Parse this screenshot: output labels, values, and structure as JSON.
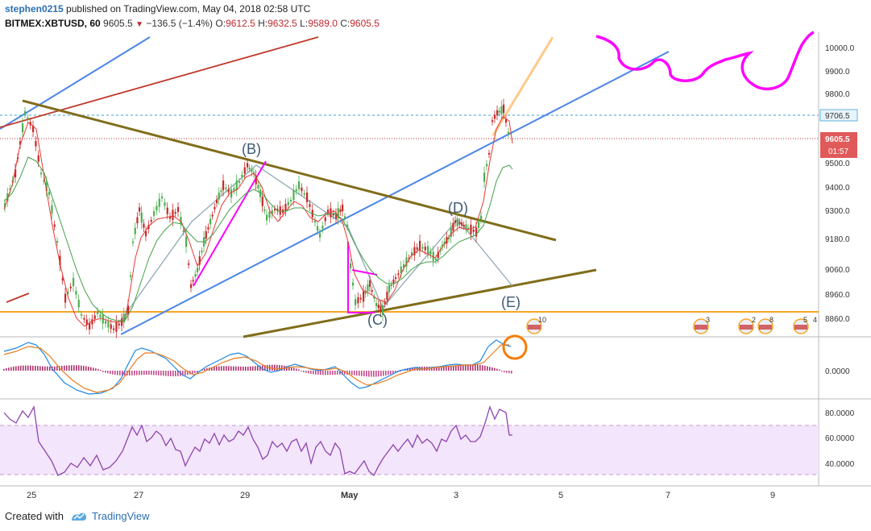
{
  "header": {
    "author": "stephen0215",
    "published_text": "published on TradingView.com, May 04, 2018 02:58 UTC",
    "symbol": "BITMEX:XBTUSD, 60",
    "price": "9605.5",
    "change": "−136.5 (−1.4%)",
    "ohlc": [
      {
        "label": "O:",
        "value": "9612.5"
      },
      {
        "label": "H:",
        "value": "9632.5"
      },
      {
        "label": "L:",
        "value": "9589.0"
      },
      {
        "label": "C:",
        "value": "9605.5"
      }
    ]
  },
  "price_axis": {
    "ticks": [
      "10000.0",
      "9900.0",
      "9800.0",
      "9500.0",
      "9400.0",
      "9300.0",
      "9180.0",
      "9060.0",
      "8960.0",
      "8860.0"
    ],
    "highlight_level": "9706.5",
    "current_price": "9605.5",
    "countdown": "01:57"
  },
  "macd_axis": {
    "ticks": [
      "0.0000"
    ]
  },
  "rsi_axis": {
    "ticks": [
      "80.0000",
      "60.0000",
      "40.0000"
    ]
  },
  "time_axis": {
    "ticks": [
      "25",
      "27",
      "29",
      "May",
      "3",
      "5",
      "7",
      "9"
    ]
  },
  "wave_labels": [
    "(B)",
    "(C)",
    "(D)",
    "(E)"
  ],
  "event_badges": [
    "10",
    "3",
    "2",
    "8",
    "5",
    "4"
  ],
  "colors": {
    "bull_candle": "#4caf50",
    "bear_candle": "#c62828",
    "trend_blue": "#4a86e8",
    "triangle_olive": "#806d1a",
    "support_orange": "#f5a623",
    "magenta": "#ff00ff",
    "rsi_purple": "#9c27b0"
  },
  "footer": {
    "created_with": "Created with",
    "brand": "TradingView"
  }
}
